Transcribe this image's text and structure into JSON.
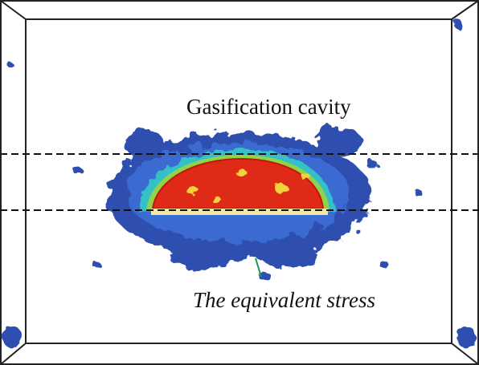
{
  "labels": {
    "cavity": "Gasification cavity",
    "stress": "The equivalent stress"
  }
}
